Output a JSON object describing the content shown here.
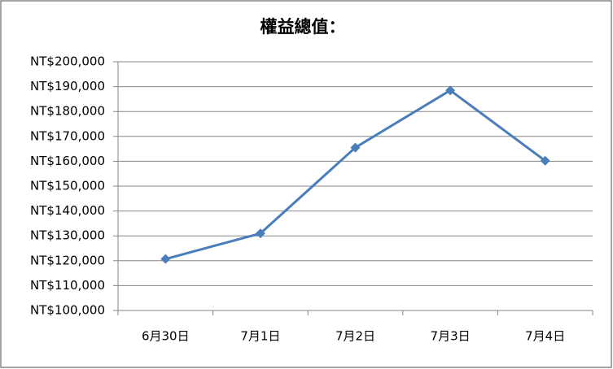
{
  "chart_data": {
    "type": "line",
    "title": "權益總值：",
    "categories": [
      "6月30日",
      "7月1日",
      "7月2日",
      "7月3日",
      "7月4日"
    ],
    "values": [
      120700,
      131000,
      165500,
      188500,
      160200
    ],
    "color": "#4a7ebb",
    "ylim": [
      100000,
      200000
    ],
    "yticks": [
      {
        "value": 100000,
        "label": "NT$100,000"
      },
      {
        "value": 110000,
        "label": "NT$110,000"
      },
      {
        "value": 120000,
        "label": "NT$120,000"
      },
      {
        "value": 130000,
        "label": "NT$130,000"
      },
      {
        "value": 140000,
        "label": "NT$140,000"
      },
      {
        "value": 150000,
        "label": "NT$150,000"
      },
      {
        "value": 160000,
        "label": "NT$160,000"
      },
      {
        "value": 170000,
        "label": "NT$170,000"
      },
      {
        "value": 180000,
        "label": "NT$180,000"
      },
      {
        "value": 190000,
        "label": "NT$190,000"
      },
      {
        "value": 200000,
        "label": "NT$200,000"
      }
    ],
    "grid": true
  }
}
